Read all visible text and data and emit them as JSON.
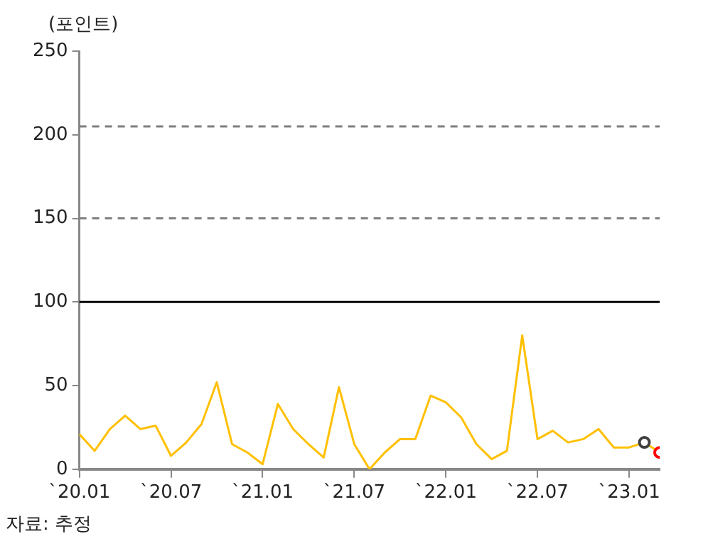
{
  "chart_data": {
    "type": "line",
    "ylabel": "(포인트)",
    "marker": "none",
    "grid": false,
    "legend": false,
    "x": [
      "2020-01",
      "2020-02",
      "2020-03",
      "2020-04",
      "2020-05",
      "2020-06",
      "2020-07",
      "2020-08",
      "2020-09",
      "2020-10",
      "2020-11",
      "2020-12",
      "2021-01",
      "2021-02",
      "2021-03",
      "2021-04",
      "2021-05",
      "2021-06",
      "2021-07",
      "2021-08",
      "2021-09",
      "2021-10",
      "2021-11",
      "2021-12",
      "2022-01",
      "2022-02",
      "2022-03",
      "2022-04",
      "2022-05",
      "2022-06",
      "2022-07",
      "2022-08",
      "2022-09",
      "2022-10",
      "2022-11",
      "2022-12",
      "2023-01",
      "2023-02",
      "2023-03"
    ],
    "series": [
      {
        "color": "#ffc000",
        "values": [
          21,
          11,
          24,
          32,
          24,
          26,
          8,
          16,
          27,
          52,
          15,
          10,
          3,
          39,
          24,
          15,
          7,
          49,
          15,
          0,
          10,
          18,
          18,
          44,
          40,
          31,
          15,
          6,
          11,
          80,
          18,
          23,
          16,
          18,
          24,
          13,
          13,
          16,
          10
        ]
      },
      {
        "type": "scatter",
        "marker": "circle",
        "color": "#404040",
        "x": [
          "2023-02"
        ],
        "values": [
          16
        ]
      },
      {
        "type": "scatter",
        "marker": "circle",
        "color": "#ff0000",
        "x": [
          "2023-03"
        ],
        "values": [
          10
        ]
      }
    ],
    "xlim": [
      "2020-01",
      "2023-03"
    ],
    "xticks": [
      {
        "value": "2020-01",
        "label": "`20.01"
      },
      {
        "value": "2020-07",
        "label": "`20.07"
      },
      {
        "value": "2021-01",
        "label": "`21.01"
      },
      {
        "value": "2021-07",
        "label": "`21.07"
      },
      {
        "value": "2022-01",
        "label": "`22.01"
      },
      {
        "value": "2022-07",
        "label": "`22.07"
      },
      {
        "value": "2023-01",
        "label": "`23.01"
      }
    ],
    "ylim": [
      0,
      250
    ],
    "yticks": [
      0,
      50,
      100,
      150,
      200,
      250
    ],
    "ref_lines": [
      {
        "axis": "y",
        "value": 205,
        "color": "#7f7f7f",
        "line_style": "dashed"
      },
      {
        "axis": "y",
        "value": 150,
        "color": "#7f7f7f",
        "line_style": "dashed"
      },
      {
        "axis": "y",
        "value": 100,
        "color": "#000000",
        "line_style": "solid"
      }
    ],
    "annotations": [
      "자료: 추정"
    ]
  }
}
